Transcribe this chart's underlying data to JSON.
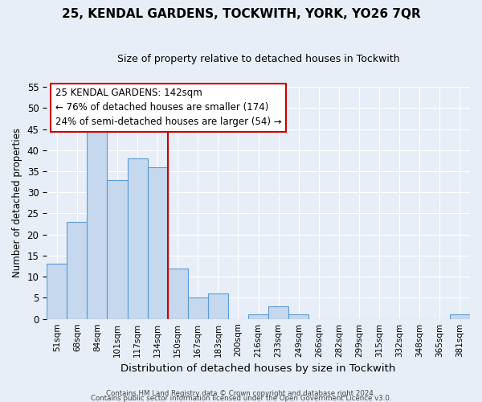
{
  "title": "25, KENDAL GARDENS, TOCKWITH, YORK, YO26 7QR",
  "subtitle": "Size of property relative to detached houses in Tockwith",
  "xlabel": "Distribution of detached houses by size in Tockwith",
  "ylabel": "Number of detached properties",
  "footer_line1": "Contains HM Land Registry data © Crown copyright and database right 2024.",
  "footer_line2": "Contains public sector information licensed under the Open Government Licence v3.0.",
  "bin_labels": [
    "51sqm",
    "68sqm",
    "84sqm",
    "101sqm",
    "117sqm",
    "134sqm",
    "150sqm",
    "167sqm",
    "183sqm",
    "200sqm",
    "216sqm",
    "233sqm",
    "249sqm",
    "266sqm",
    "282sqm",
    "299sqm",
    "315sqm",
    "332sqm",
    "348sqm",
    "365sqm",
    "381sqm"
  ],
  "bar_values": [
    13,
    23,
    45,
    33,
    38,
    36,
    12,
    5,
    6,
    0,
    1,
    3,
    1,
    0,
    0,
    0,
    0,
    0,
    0,
    0,
    1
  ],
  "bar_color": "#c5d8ed",
  "bar_edge_color": "#5b9bd5",
  "ylim": [
    0,
    55
  ],
  "yticks": [
    0,
    5,
    10,
    15,
    20,
    25,
    30,
    35,
    40,
    45,
    50,
    55
  ],
  "property_label": "25 KENDAL GARDENS: 142sqm",
  "annotation_line1": "← 76% of detached houses are smaller (174)",
  "annotation_line2": "24% of semi-detached houses are larger (54) →",
  "annotation_box_color": "#ffffff",
  "annotation_border_color": "#cc0000",
  "vline_color": "#cc0000",
  "background_color": "#e8eef8",
  "grid_color": "#ffffff",
  "title_fontsize": 11,
  "subtitle_fontsize": 9
}
